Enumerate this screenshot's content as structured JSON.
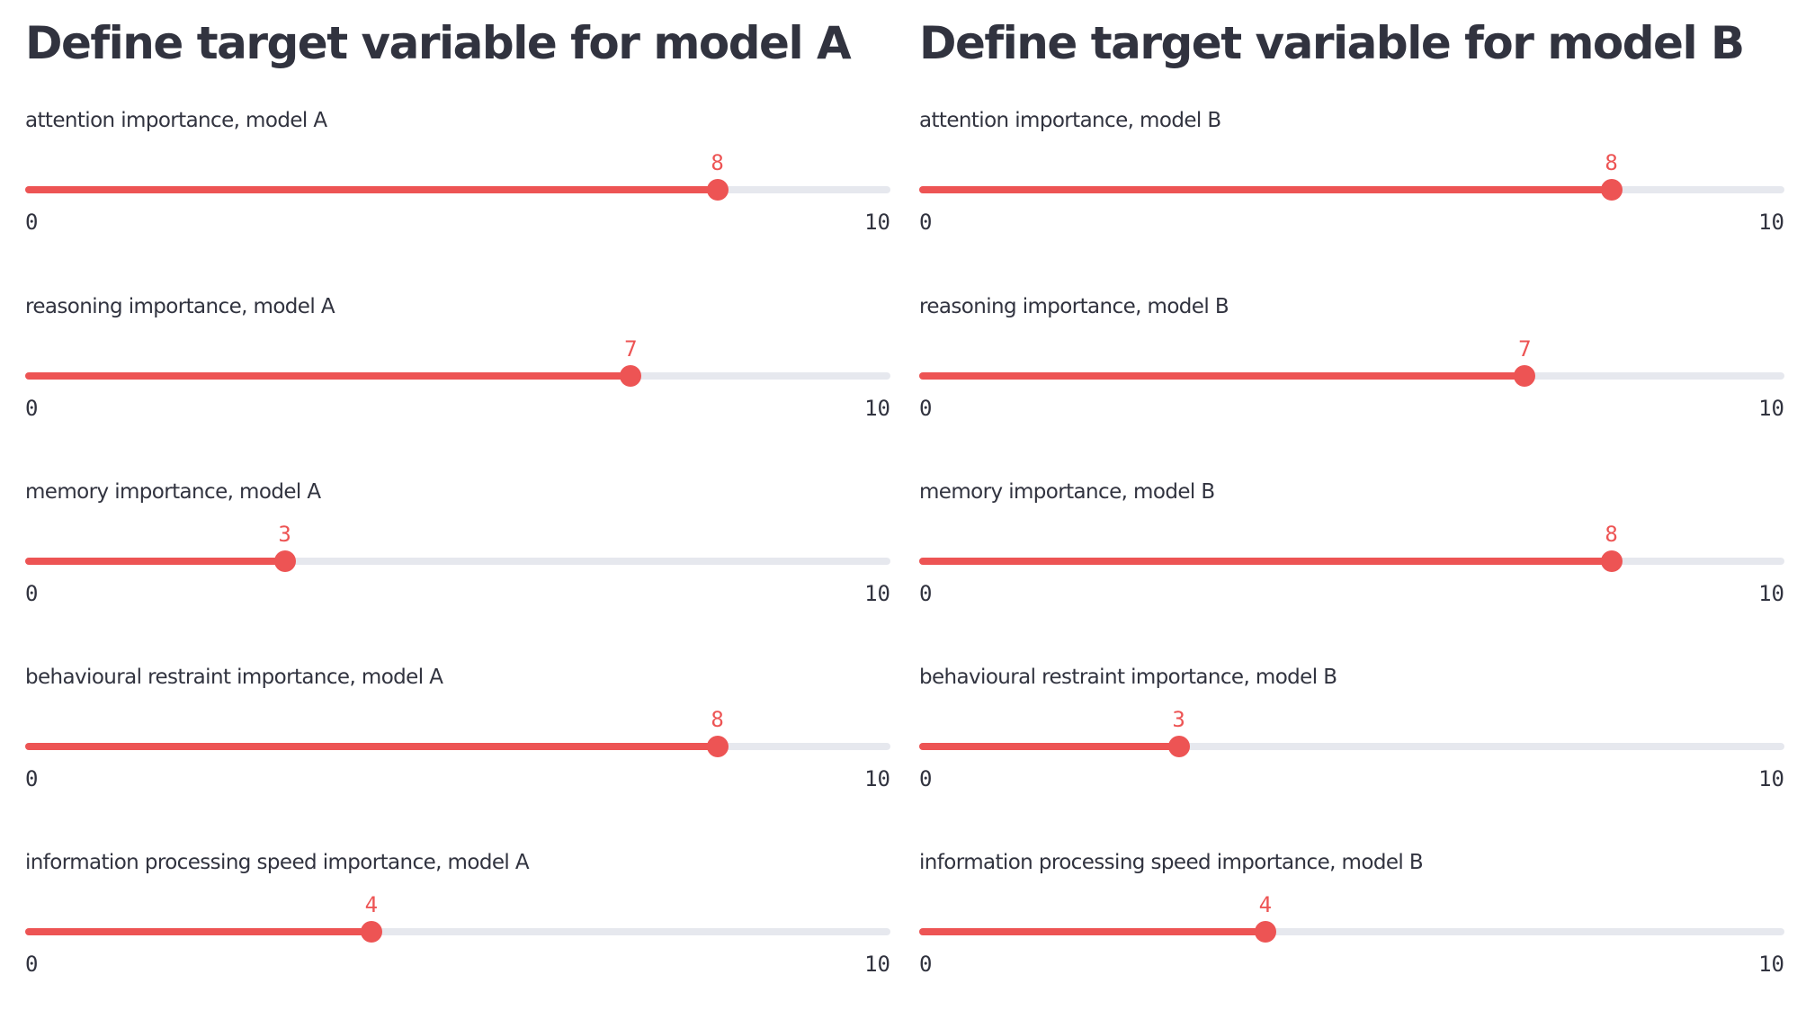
{
  "colors": {
    "accent": "#ed5454",
    "track": "#e6e8ee",
    "text": "#31333f"
  },
  "columns": [
    {
      "title": "Define target variable for model A",
      "sliders": [
        {
          "label": "attention importance, model A",
          "value": 8,
          "min": 0,
          "max": 10
        },
        {
          "label": "reasoning importance, model A",
          "value": 7,
          "min": 0,
          "max": 10
        },
        {
          "label": "memory importance, model A",
          "value": 3,
          "min": 0,
          "max": 10
        },
        {
          "label": "behavioural restraint importance, model A",
          "value": 8,
          "min": 0,
          "max": 10
        },
        {
          "label": "information processing speed importance, model A",
          "value": 4,
          "min": 0,
          "max": 10
        }
      ]
    },
    {
      "title": "Define target variable for model B",
      "sliders": [
        {
          "label": "attention importance, model B",
          "value": 8,
          "min": 0,
          "max": 10
        },
        {
          "label": "reasoning importance, model B",
          "value": 7,
          "min": 0,
          "max": 10
        },
        {
          "label": "memory importance, model B",
          "value": 8,
          "min": 0,
          "max": 10
        },
        {
          "label": "behavioural restraint importance, model B",
          "value": 3,
          "min": 0,
          "max": 10
        },
        {
          "label": "information processing speed importance, model B",
          "value": 4,
          "min": 0,
          "max": 10
        }
      ]
    }
  ]
}
